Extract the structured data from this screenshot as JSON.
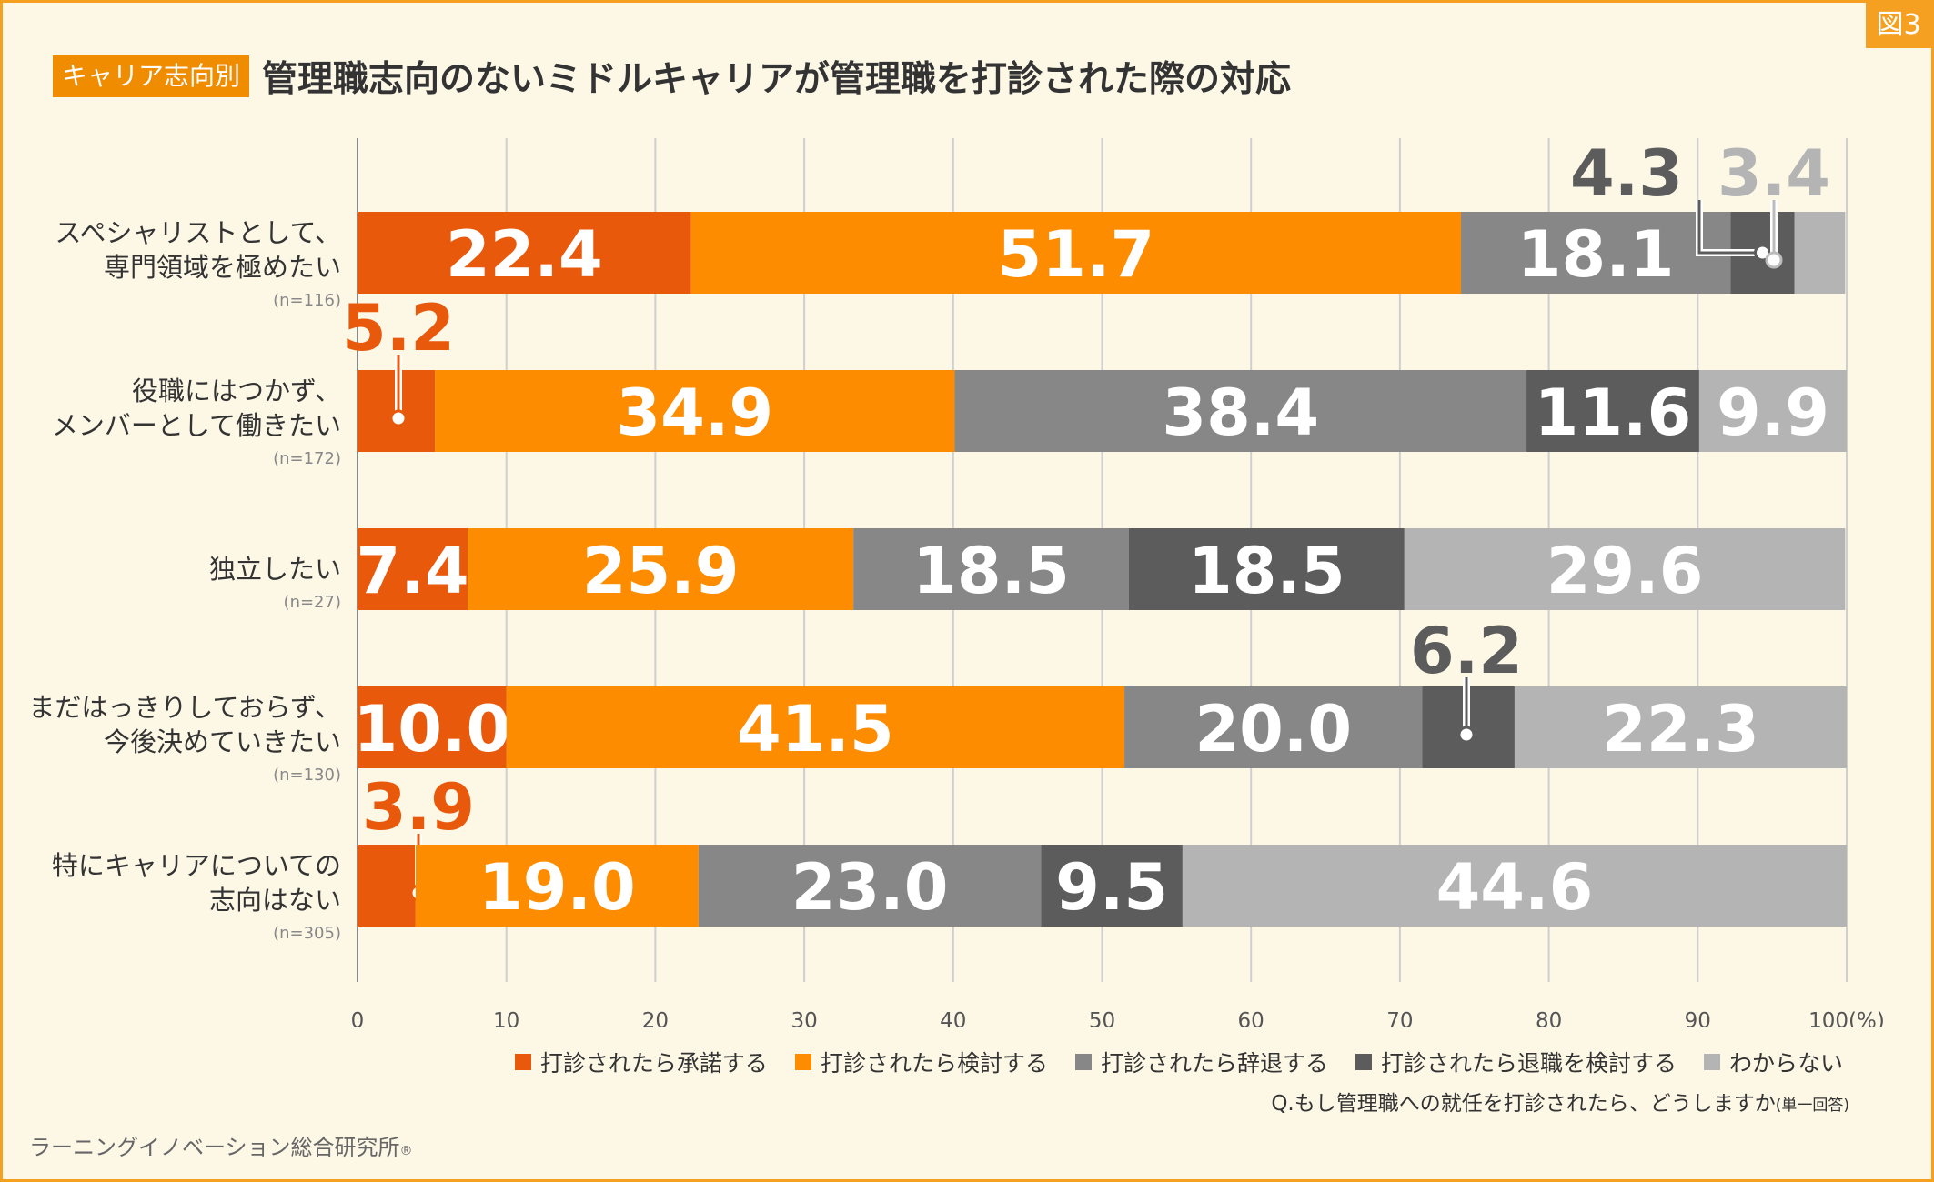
{
  "figure_label": "図3",
  "header": {
    "tag": "キャリア志向別",
    "title": "管理職志向のないミドルキャリアが管理職を打診された際の対応"
  },
  "question": "Q.もし管理職への就任を打診されたら、どうしますか",
  "question_note": "(単一回答)",
  "source": "ラーニングイノベーション総合研究所",
  "source_mark": "®",
  "chart_data": {
    "type": "bar",
    "orientation": "horizontal",
    "stacked": true,
    "xlim": [
      0,
      100
    ],
    "xticks": [
      0,
      10,
      20,
      30,
      40,
      50,
      60,
      70,
      80,
      90,
      100
    ],
    "xtick_labels": [
      "0",
      "10",
      "20",
      "30",
      "40",
      "50",
      "60",
      "70",
      "80",
      "90",
      "100(%)"
    ],
    "grid": true,
    "legend_position": "bottom-right",
    "categories": [
      {
        "lines": [
          "スペシャリストとして、",
          "専門領域を極めたい"
        ],
        "n": "(n=116)"
      },
      {
        "lines": [
          "役職にはつかず、",
          "メンバーとして働きたい"
        ],
        "n": "(n=172)"
      },
      {
        "lines": [
          "独立したい"
        ],
        "n": "(n=27)"
      },
      {
        "lines": [
          "まだはっきりしておらず、",
          "今後決めていきたい"
        ],
        "n": "(n=130)"
      },
      {
        "lines": [
          "特にキャリアについての",
          "志向はない"
        ],
        "n": "(n=305)"
      }
    ],
    "series": [
      {
        "name": "打診されたら承諾する",
        "color": "#e8590c",
        "values": [
          22.4,
          5.2,
          7.4,
          10.0,
          3.9
        ],
        "labels": [
          "22.4",
          "5.2",
          "7.4",
          "10.0",
          "3.9"
        ]
      },
      {
        "name": "打診されたら検討する",
        "color": "#fd8c00",
        "values": [
          51.7,
          34.9,
          25.9,
          41.5,
          19.0
        ],
        "labels": [
          "51.7",
          "34.9",
          "25.9",
          "41.5",
          "19.0"
        ]
      },
      {
        "name": "打診されたら辞退する",
        "color": "#878787",
        "values": [
          18.1,
          38.4,
          18.5,
          20.0,
          23.0
        ],
        "labels": [
          "18.1",
          "38.4",
          "18.5",
          "20.0",
          "23.0"
        ]
      },
      {
        "name": "打診されたら退職を検討する",
        "color": "#5c5c5c",
        "values": [
          4.3,
          11.6,
          18.5,
          6.2,
          9.5
        ],
        "labels": [
          "4.3",
          "11.6",
          "18.5",
          "6.2",
          "9.5"
        ]
      },
      {
        "name": "わからない",
        "color": "#b4b4b4",
        "values": [
          3.4,
          9.9,
          29.6,
          22.3,
          44.6
        ],
        "labels": [
          "3.4",
          "9.9",
          "29.6",
          "22.3",
          "44.6"
        ]
      }
    ]
  }
}
